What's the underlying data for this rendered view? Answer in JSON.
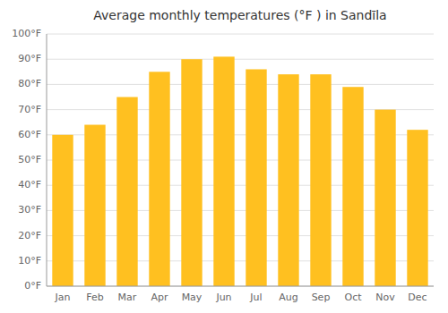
{
  "chart_data": {
    "type": "bar",
    "title": "Average monthly temperatures (°F ) in Sandīla",
    "categories": [
      "Jan",
      "Feb",
      "Mar",
      "Apr",
      "May",
      "Jun",
      "Jul",
      "Aug",
      "Sep",
      "Oct",
      "Nov",
      "Dec"
    ],
    "values": [
      60,
      64,
      75,
      85,
      90,
      91,
      86,
      84,
      84,
      79,
      70,
      62
    ],
    "color": "#FFC020",
    "ylim": [
      0,
      100
    ],
    "yticks": [
      {
        "value": 0,
        "label": "0°F"
      },
      {
        "value": 10,
        "label": "10°F"
      },
      {
        "value": 20,
        "label": "20°F"
      },
      {
        "value": 30,
        "label": "30°F"
      },
      {
        "value": 40,
        "label": "40°F"
      },
      {
        "value": 50,
        "label": "50°F"
      },
      {
        "value": 60,
        "label": "60°F"
      },
      {
        "value": 70,
        "label": "70°F"
      },
      {
        "value": 80,
        "label": "80°F"
      },
      {
        "value": 90,
        "label": "90°F"
      },
      {
        "value": 100,
        "label": "100°F"
      }
    ],
    "grid": true
  }
}
